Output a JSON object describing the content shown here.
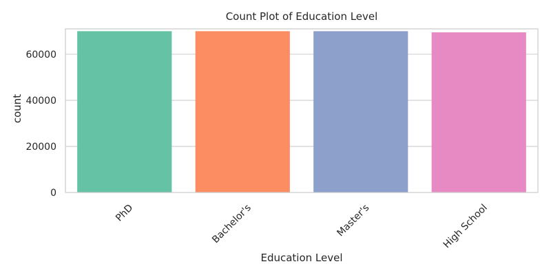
{
  "chart_data": {
    "type": "bar",
    "title": "Count Plot of Education Level",
    "xlabel": "Education Level",
    "ylabel": "count",
    "categories": [
      "PhD",
      "Bachelor's",
      "Master's",
      "High School"
    ],
    "values": [
      70000,
      70000,
      70000,
      69500
    ],
    "colors": [
      "#66c2a5",
      "#fc8d62",
      "#8da0cb",
      "#e78ac3"
    ],
    "ylim": [
      0,
      71000
    ],
    "yticks": [
      0,
      20000,
      40000,
      60000
    ],
    "ytick_labels": [
      "0",
      "20000",
      "40000",
      "60000"
    ],
    "grid": true,
    "grid_axis": "y",
    "legend": "none",
    "style": "seaborn-whitegrid"
  }
}
